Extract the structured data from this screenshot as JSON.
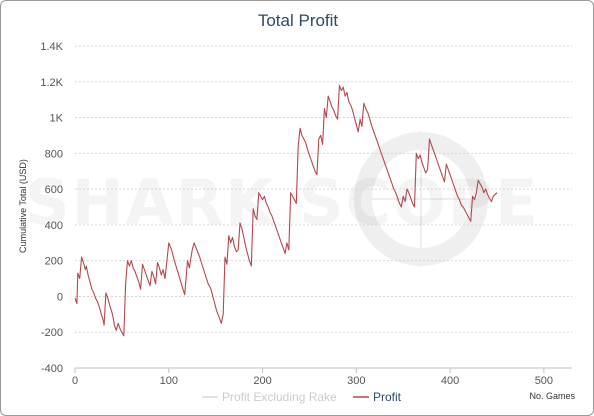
{
  "watermark": "SHARK SCOPE",
  "chart_data": {
    "type": "line",
    "title": "Total Profit",
    "xlabel": "No. Games",
    "ylabel": "Cumulative Total (USD)",
    "xlim": [
      0,
      530
    ],
    "ylim": [
      -400,
      1400
    ],
    "x_ticks": [
      0,
      100,
      200,
      300,
      400,
      500
    ],
    "x_tick_labels": [
      "0",
      "100",
      "200",
      "300",
      "400",
      "500"
    ],
    "y_ticks": [
      -400,
      -200,
      0,
      200,
      400,
      600,
      800,
      1000,
      1200,
      1400
    ],
    "y_tick_labels": [
      "-400",
      "-200",
      "0",
      "200",
      "400",
      "600",
      "800",
      "1K",
      "1.2K",
      "1.4K"
    ],
    "grid": true,
    "legend_position": "bottom-center",
    "series": [
      {
        "name": "Profit Excluding Rake",
        "color": "#d9d9d9",
        "visible": false,
        "points": []
      },
      {
        "name": "Profit",
        "color": "#b5484d",
        "visible": true,
        "points": [
          [
            0,
            -10
          ],
          [
            2,
            -40
          ],
          [
            3,
            130
          ],
          [
            5,
            100
          ],
          [
            7,
            220
          ],
          [
            9,
            190
          ],
          [
            11,
            150
          ],
          [
            12,
            170
          ],
          [
            14,
            120
          ],
          [
            16,
            80
          ],
          [
            18,
            40
          ],
          [
            20,
            20
          ],
          [
            22,
            -10
          ],
          [
            24,
            -30
          ],
          [
            26,
            -60
          ],
          [
            28,
            -100
          ],
          [
            30,
            -130
          ],
          [
            31,
            -160
          ],
          [
            33,
            20
          ],
          [
            35,
            -10
          ],
          [
            37,
            -50
          ],
          [
            40,
            -100
          ],
          [
            42,
            -160
          ],
          [
            44,
            -190
          ],
          [
            46,
            -150
          ],
          [
            48,
            -180
          ],
          [
            50,
            -200
          ],
          [
            52,
            -220
          ],
          [
            54,
            70
          ],
          [
            56,
            200
          ],
          [
            58,
            170
          ],
          [
            60,
            200
          ],
          [
            62,
            160
          ],
          [
            64,
            140
          ],
          [
            66,
            110
          ],
          [
            68,
            80
          ],
          [
            70,
            40
          ],
          [
            72,
            180
          ],
          [
            74,
            150
          ],
          [
            76,
            120
          ],
          [
            78,
            90
          ],
          [
            80,
            60
          ],
          [
            82,
            140
          ],
          [
            84,
            110
          ],
          [
            86,
            70
          ],
          [
            88,
            190
          ],
          [
            90,
            160
          ],
          [
            92,
            120
          ],
          [
            94,
            150
          ],
          [
            96,
            100
          ],
          [
            100,
            300
          ],
          [
            103,
            260
          ],
          [
            106,
            200
          ],
          [
            110,
            130
          ],
          [
            114,
            60
          ],
          [
            117,
            10
          ],
          [
            120,
            200
          ],
          [
            122,
            160
          ],
          [
            125,
            260
          ],
          [
            127,
            300
          ],
          [
            130,
            260
          ],
          [
            133,
            220
          ],
          [
            136,
            170
          ],
          [
            139,
            120
          ],
          [
            142,
            70
          ],
          [
            145,
            40
          ],
          [
            148,
            -20
          ],
          [
            151,
            -80
          ],
          [
            154,
            -120
          ],
          [
            156,
            -150
          ],
          [
            158,
            -100
          ],
          [
            160,
            220
          ],
          [
            162,
            180
          ],
          [
            164,
            340
          ],
          [
            166,
            300
          ],
          [
            168,
            330
          ],
          [
            170,
            280
          ],
          [
            172,
            250
          ],
          [
            174,
            260
          ],
          [
            176,
            410
          ],
          [
            178,
            380
          ],
          [
            180,
            330
          ],
          [
            182,
            280
          ],
          [
            184,
            240
          ],
          [
            186,
            200
          ],
          [
            188,
            170
          ],
          [
            190,
            490
          ],
          [
            192,
            450
          ],
          [
            194,
            430
          ],
          [
            196,
            580
          ],
          [
            198,
            560
          ],
          [
            200,
            540
          ],
          [
            202,
            560
          ],
          [
            204,
            520
          ],
          [
            206,
            500
          ],
          [
            208,
            470
          ],
          [
            210,
            450
          ],
          [
            212,
            420
          ],
          [
            214,
            390
          ],
          [
            216,
            360
          ],
          [
            218,
            330
          ],
          [
            220,
            300
          ],
          [
            222,
            270
          ],
          [
            224,
            240
          ],
          [
            226,
            300
          ],
          [
            228,
            260
          ],
          [
            230,
            580
          ],
          [
            232,
            560
          ],
          [
            234,
            540
          ],
          [
            236,
            520
          ],
          [
            238,
            840
          ],
          [
            240,
            940
          ],
          [
            242,
            900
          ],
          [
            244,
            880
          ],
          [
            246,
            860
          ],
          [
            248,
            820
          ],
          [
            250,
            790
          ],
          [
            252,
            760
          ],
          [
            254,
            730
          ],
          [
            256,
            700
          ],
          [
            258,
            680
          ],
          [
            260,
            880
          ],
          [
            262,
            900
          ],
          [
            264,
            850
          ],
          [
            266,
            1050
          ],
          [
            268,
            1000
          ],
          [
            270,
            1120
          ],
          [
            272,
            1090
          ],
          [
            274,
            1060
          ],
          [
            276,
            1040
          ],
          [
            278,
            1010
          ],
          [
            280,
            990
          ],
          [
            282,
            1180
          ],
          [
            284,
            1150
          ],
          [
            286,
            1170
          ],
          [
            288,
            1120
          ],
          [
            290,
            1140
          ],
          [
            292,
            1090
          ],
          [
            294,
            1070
          ],
          [
            296,
            1040
          ],
          [
            298,
            1000
          ],
          [
            300,
            960
          ],
          [
            302,
            920
          ],
          [
            304,
            990
          ],
          [
            306,
            950
          ],
          [
            308,
            1080
          ],
          [
            310,
            1050
          ],
          [
            312,
            1030
          ],
          [
            314,
            1000
          ],
          [
            316,
            960
          ],
          [
            318,
            930
          ],
          [
            320,
            900
          ],
          [
            322,
            870
          ],
          [
            324,
            840
          ],
          [
            326,
            810
          ],
          [
            328,
            780
          ],
          [
            330,
            750
          ],
          [
            332,
            720
          ],
          [
            334,
            690
          ],
          [
            336,
            660
          ],
          [
            338,
            630
          ],
          [
            340,
            600
          ],
          [
            342,
            580
          ],
          [
            344,
            550
          ],
          [
            346,
            520
          ],
          [
            348,
            500
          ],
          [
            350,
            560
          ],
          [
            352,
            530
          ],
          [
            354,
            600
          ],
          [
            356,
            580
          ],
          [
            358,
            550
          ],
          [
            360,
            520
          ],
          [
            362,
            500
          ],
          [
            364,
            800
          ],
          [
            366,
            770
          ],
          [
            368,
            790
          ],
          [
            370,
            750
          ],
          [
            372,
            720
          ],
          [
            374,
            690
          ],
          [
            376,
            710
          ],
          [
            378,
            880
          ],
          [
            380,
            850
          ],
          [
            382,
            820
          ],
          [
            384,
            790
          ],
          [
            386,
            760
          ],
          [
            388,
            730
          ],
          [
            390,
            700
          ],
          [
            392,
            670
          ],
          [
            394,
            640
          ],
          [
            396,
            740
          ],
          [
            398,
            710
          ],
          [
            400,
            680
          ],
          [
            402,
            650
          ],
          [
            404,
            620
          ],
          [
            406,
            590
          ],
          [
            408,
            560
          ],
          [
            410,
            540
          ],
          [
            412,
            510
          ],
          [
            414,
            500
          ],
          [
            416,
            480
          ],
          [
            418,
            460
          ],
          [
            420,
            440
          ],
          [
            422,
            420
          ],
          [
            424,
            560
          ],
          [
            426,
            540
          ],
          [
            428,
            580
          ],
          [
            430,
            650
          ],
          [
            432,
            630
          ],
          [
            434,
            610
          ],
          [
            436,
            580
          ],
          [
            438,
            600
          ],
          [
            440,
            570
          ],
          [
            442,
            550
          ],
          [
            444,
            530
          ],
          [
            446,
            560
          ],
          [
            450,
            580
          ]
        ]
      }
    ]
  }
}
